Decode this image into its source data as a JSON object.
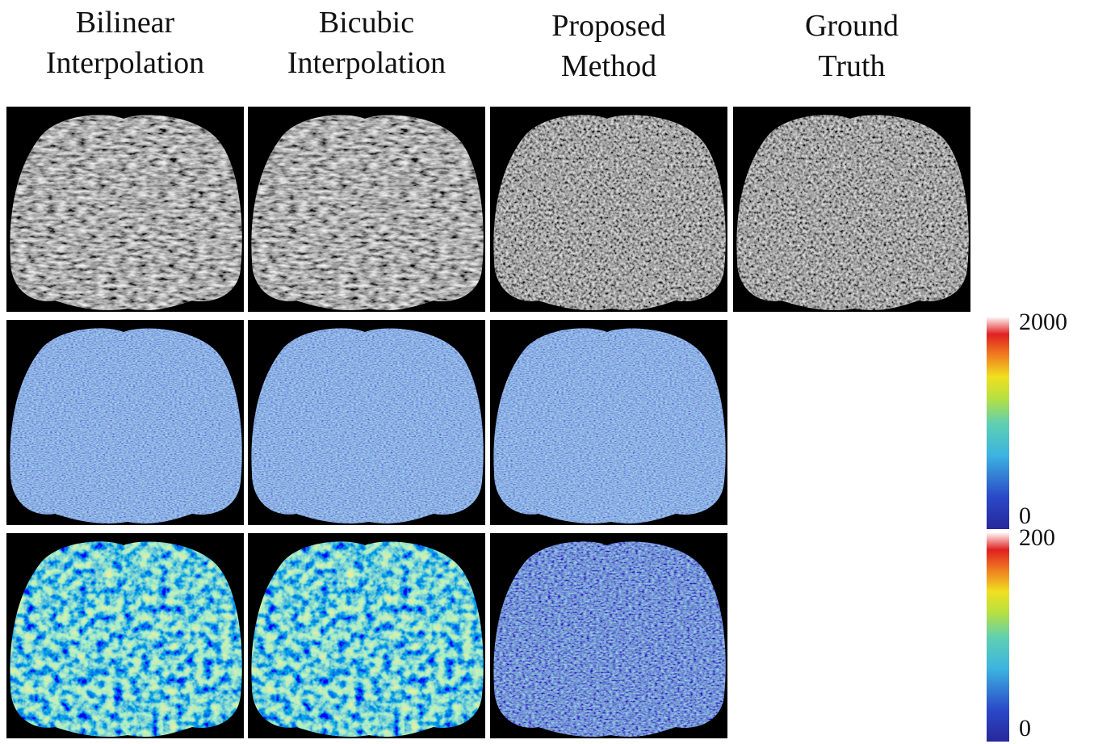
{
  "columns": [
    {
      "lines": [
        "Bilinear",
        "Interpolation"
      ]
    },
    {
      "lines": [
        "Bicubic",
        "Interpolation"
      ]
    },
    {
      "lines": [
        "Proposed",
        "Method"
      ]
    },
    {
      "lines": [
        "Ground",
        "Truth"
      ]
    }
  ],
  "colorbars": [
    {
      "max": 2000,
      "min": 0
    },
    {
      "max": 200,
      "min": 0
    }
  ]
}
